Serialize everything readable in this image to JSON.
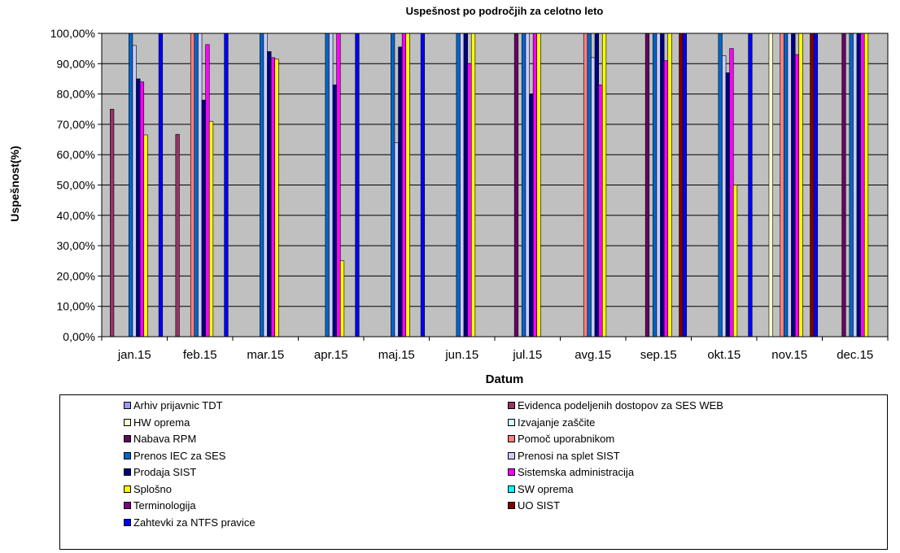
{
  "chart_data": {
    "type": "bar",
    "title": "Uspešnost po področjih za celotno leto",
    "xlabel": "Datum",
    "ylabel": "Uspešnost(%)",
    "ylim": [
      0,
      100
    ],
    "yticks": [
      "0,00%",
      "10,00%",
      "20,00%",
      "30,00%",
      "40,00%",
      "50,00%",
      "60,00%",
      "70,00%",
      "80,00%",
      "90,00%",
      "100,00%"
    ],
    "categories": [
      "jan.15",
      "feb.15",
      "mar.15",
      "apr.15",
      "maj.15",
      "jun.15",
      "jul.15",
      "avg.15",
      "sep.15",
      "okt.15",
      "nov.15",
      "dec.15"
    ],
    "grid": true,
    "plot_background": "#c0c0c0",
    "legend_position": "bottom",
    "series": [
      {
        "name": "Arhiv prijavnic TDT",
        "color": "#9999ff",
        "values": [
          null,
          null,
          null,
          null,
          null,
          null,
          null,
          null,
          null,
          null,
          null,
          null
        ]
      },
      {
        "name": "Evidenca podeljenih dostopov za SES WEB",
        "color": "#993366",
        "values": [
          75,
          66.7,
          null,
          null,
          null,
          null,
          null,
          null,
          null,
          null,
          null,
          null
        ]
      },
      {
        "name": "HW oprema",
        "color": "#ffffcc",
        "values": [
          null,
          null,
          null,
          null,
          null,
          null,
          null,
          null,
          null,
          null,
          100,
          null
        ]
      },
      {
        "name": "Izvajanje zaščite",
        "color": "#ccffff",
        "values": [
          null,
          null,
          null,
          null,
          null,
          null,
          null,
          null,
          null,
          null,
          null,
          null
        ]
      },
      {
        "name": "Nabava RPM",
        "color": "#660066",
        "values": [
          null,
          null,
          null,
          null,
          null,
          null,
          100,
          null,
          100,
          null,
          null,
          100
        ]
      },
      {
        "name": "Pomoč uporabnikom",
        "color": "#ff8080",
        "values": [
          null,
          100,
          null,
          null,
          null,
          null,
          null,
          100,
          null,
          null,
          100,
          null
        ]
      },
      {
        "name": "Prenos IEC za SES",
        "color": "#0066cc",
        "values": [
          100,
          100,
          100,
          100,
          100,
          100,
          100,
          100,
          100,
          100,
          100,
          100
        ]
      },
      {
        "name": "Prenosi na splet SIST",
        "color": "#ccccff",
        "values": [
          96,
          100,
          100,
          100,
          64,
          100,
          100,
          92,
          100,
          92.6,
          100,
          100
        ]
      },
      {
        "name": "Prodaja SIST",
        "color": "#000080",
        "values": [
          85,
          78,
          94,
          83,
          95.5,
          100,
          80,
          100,
          100,
          87,
          100,
          100
        ]
      },
      {
        "name": "Sistemska administracija",
        "color": "#ff00ff",
        "values": [
          84,
          96.3,
          92,
          100,
          100,
          90,
          100,
          83,
          91,
          95,
          93,
          100
        ]
      },
      {
        "name": "Splošno",
        "color": "#ffff00",
        "values": [
          66.5,
          71,
          91.5,
          25,
          100,
          100,
          100,
          100,
          100,
          50,
          100,
          100
        ]
      },
      {
        "name": "SW oprema",
        "color": "#00ffff",
        "values": [
          null,
          null,
          null,
          null,
          null,
          null,
          null,
          null,
          null,
          null,
          null,
          null
        ]
      },
      {
        "name": "Terminologija",
        "color": "#800080",
        "values": [
          null,
          null,
          null,
          null,
          null,
          null,
          null,
          null,
          null,
          null,
          null,
          null
        ]
      },
      {
        "name": "UO SIST",
        "color": "#800000",
        "values": [
          null,
          null,
          null,
          null,
          null,
          null,
          null,
          null,
          100,
          null,
          100,
          null
        ]
      },
      {
        "name": "Zahtevki za NTFS pravice",
        "color": "#0000ff",
        "values": [
          100,
          100,
          null,
          100,
          100,
          null,
          null,
          null,
          100,
          100,
          100,
          null
        ]
      }
    ]
  }
}
